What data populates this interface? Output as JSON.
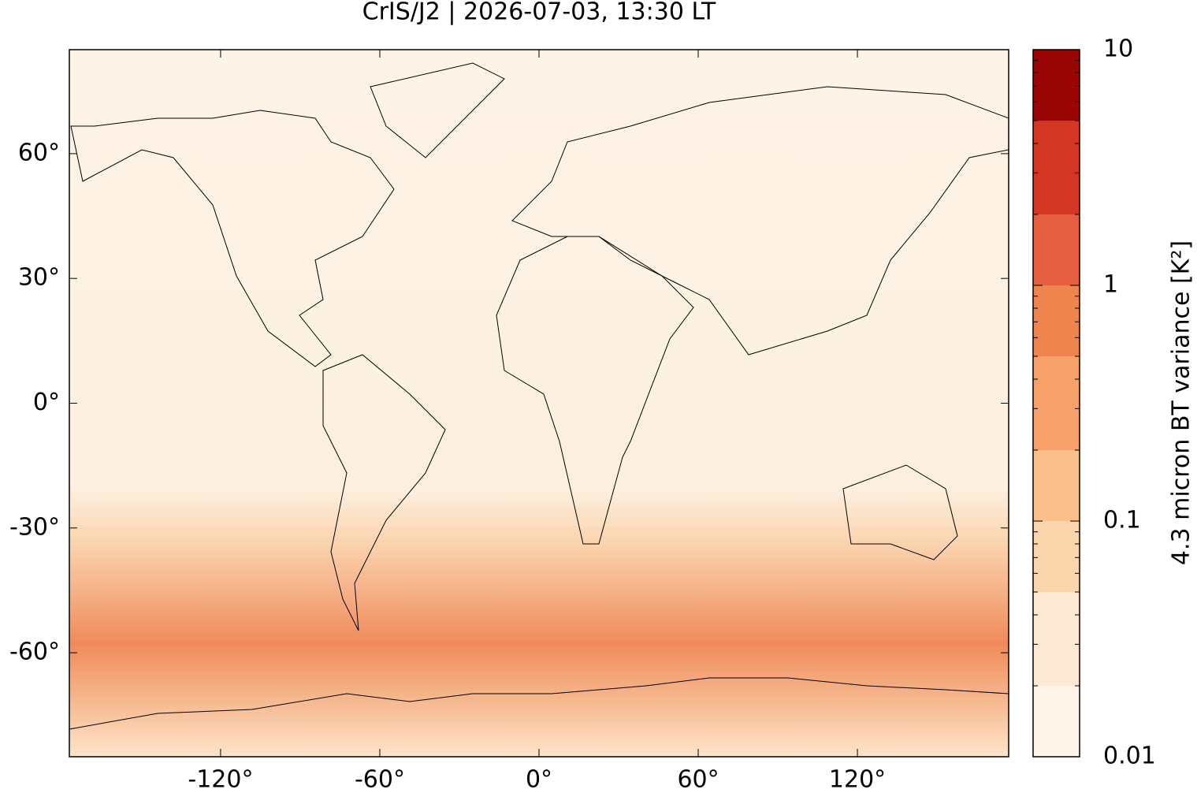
{
  "chart_data": {
    "type": "map",
    "title": "CrIS/J2 | 2026-07-03, 13:30 LT",
    "xlim": [
      -177,
      177
    ],
    "ylim": [
      -85,
      85
    ],
    "xticks": [
      {
        "value": -120,
        "label": "-120°"
      },
      {
        "value": -60,
        "label": "-60°"
      },
      {
        "value": 0,
        "label": "0°"
      },
      {
        "value": 60,
        "label": "60°"
      },
      {
        "value": 120,
        "label": "120°"
      }
    ],
    "yticks": [
      {
        "value": 60,
        "label": "60°"
      },
      {
        "value": 30,
        "label": "30°"
      },
      {
        "value": 0,
        "label": "0°"
      },
      {
        "value": -30,
        "label": "-30°"
      },
      {
        "value": -60,
        "label": "-60°"
      }
    ],
    "colorbar": {
      "label": "4.3 micron BT variance [K²]",
      "scale": "log",
      "clim": [
        0.01,
        10
      ],
      "levels": [
        0.01,
        0.02,
        0.05,
        0.1,
        0.2,
        0.5,
        1,
        2,
        5,
        10
      ],
      "colors": [
        "#fff5eb",
        "#fde9d4",
        "#fbd6ad",
        "#fac08c",
        "#f7a06a",
        "#f0844f",
        "#e55e40",
        "#d43624",
        "#9a0606"
      ],
      "ticks": [
        0.01,
        0.1,
        1,
        10
      ],
      "minor_ticks": [
        0.02,
        0.03,
        0.04,
        0.05,
        0.06,
        0.07,
        0.08,
        0.09,
        0.2,
        0.3,
        0.4,
        0.5,
        0.6,
        0.7,
        0.8,
        0.9,
        2,
        3,
        4,
        5,
        6,
        7,
        8,
        9
      ]
    }
  }
}
